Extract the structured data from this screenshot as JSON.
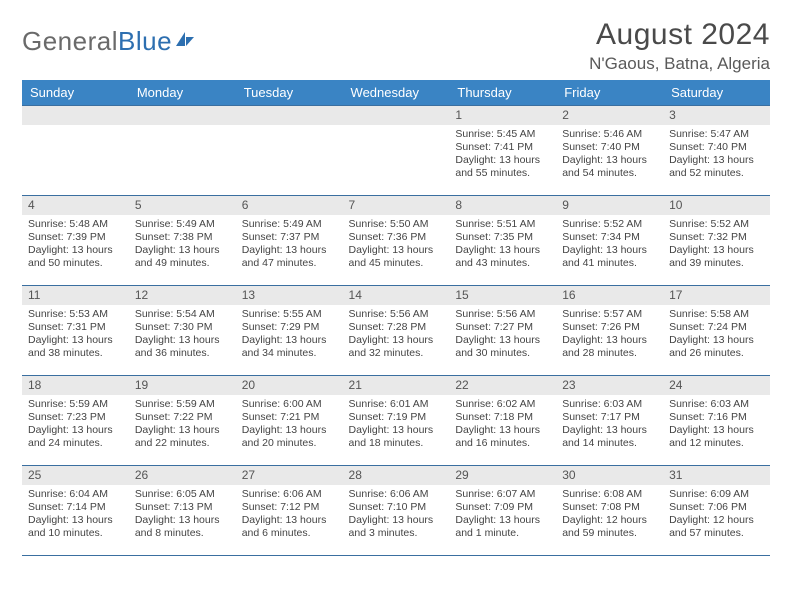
{
  "logo": {
    "text1": "General",
    "text2": "Blue"
  },
  "title": "August 2024",
  "location": "N'Gaous, Batna, Algeria",
  "colors": {
    "header_bg": "#3a84c4",
    "header_text": "#ffffff",
    "daybar_bg": "#e9e9e9",
    "border": "#3a6fa0",
    "logo_gray": "#6a6a6a",
    "logo_blue": "#2d6fb0"
  },
  "weekdays": [
    "Sunday",
    "Monday",
    "Tuesday",
    "Wednesday",
    "Thursday",
    "Friday",
    "Saturday"
  ],
  "weeks": [
    [
      null,
      null,
      null,
      null,
      {
        "n": "1",
        "sr": "5:45 AM",
        "ss": "7:41 PM",
        "dl": "Daylight: 13 hours and 55 minutes."
      },
      {
        "n": "2",
        "sr": "5:46 AM",
        "ss": "7:40 PM",
        "dl": "Daylight: 13 hours and 54 minutes."
      },
      {
        "n": "3",
        "sr": "5:47 AM",
        "ss": "7:40 PM",
        "dl": "Daylight: 13 hours and 52 minutes."
      }
    ],
    [
      {
        "n": "4",
        "sr": "5:48 AM",
        "ss": "7:39 PM",
        "dl": "Daylight: 13 hours and 50 minutes."
      },
      {
        "n": "5",
        "sr": "5:49 AM",
        "ss": "7:38 PM",
        "dl": "Daylight: 13 hours and 49 minutes."
      },
      {
        "n": "6",
        "sr": "5:49 AM",
        "ss": "7:37 PM",
        "dl": "Daylight: 13 hours and 47 minutes."
      },
      {
        "n": "7",
        "sr": "5:50 AM",
        "ss": "7:36 PM",
        "dl": "Daylight: 13 hours and 45 minutes."
      },
      {
        "n": "8",
        "sr": "5:51 AM",
        "ss": "7:35 PM",
        "dl": "Daylight: 13 hours and 43 minutes."
      },
      {
        "n": "9",
        "sr": "5:52 AM",
        "ss": "7:34 PM",
        "dl": "Daylight: 13 hours and 41 minutes."
      },
      {
        "n": "10",
        "sr": "5:52 AM",
        "ss": "7:32 PM",
        "dl": "Daylight: 13 hours and 39 minutes."
      }
    ],
    [
      {
        "n": "11",
        "sr": "5:53 AM",
        "ss": "7:31 PM",
        "dl": "Daylight: 13 hours and 38 minutes."
      },
      {
        "n": "12",
        "sr": "5:54 AM",
        "ss": "7:30 PM",
        "dl": "Daylight: 13 hours and 36 minutes."
      },
      {
        "n": "13",
        "sr": "5:55 AM",
        "ss": "7:29 PM",
        "dl": "Daylight: 13 hours and 34 minutes."
      },
      {
        "n": "14",
        "sr": "5:56 AM",
        "ss": "7:28 PM",
        "dl": "Daylight: 13 hours and 32 minutes."
      },
      {
        "n": "15",
        "sr": "5:56 AM",
        "ss": "7:27 PM",
        "dl": "Daylight: 13 hours and 30 minutes."
      },
      {
        "n": "16",
        "sr": "5:57 AM",
        "ss": "7:26 PM",
        "dl": "Daylight: 13 hours and 28 minutes."
      },
      {
        "n": "17",
        "sr": "5:58 AM",
        "ss": "7:24 PM",
        "dl": "Daylight: 13 hours and 26 minutes."
      }
    ],
    [
      {
        "n": "18",
        "sr": "5:59 AM",
        "ss": "7:23 PM",
        "dl": "Daylight: 13 hours and 24 minutes."
      },
      {
        "n": "19",
        "sr": "5:59 AM",
        "ss": "7:22 PM",
        "dl": "Daylight: 13 hours and 22 minutes."
      },
      {
        "n": "20",
        "sr": "6:00 AM",
        "ss": "7:21 PM",
        "dl": "Daylight: 13 hours and 20 minutes."
      },
      {
        "n": "21",
        "sr": "6:01 AM",
        "ss": "7:19 PM",
        "dl": "Daylight: 13 hours and 18 minutes."
      },
      {
        "n": "22",
        "sr": "6:02 AM",
        "ss": "7:18 PM",
        "dl": "Daylight: 13 hours and 16 minutes."
      },
      {
        "n": "23",
        "sr": "6:03 AM",
        "ss": "7:17 PM",
        "dl": "Daylight: 13 hours and 14 minutes."
      },
      {
        "n": "24",
        "sr": "6:03 AM",
        "ss": "7:16 PM",
        "dl": "Daylight: 13 hours and 12 minutes."
      }
    ],
    [
      {
        "n": "25",
        "sr": "6:04 AM",
        "ss": "7:14 PM",
        "dl": "Daylight: 13 hours and 10 minutes."
      },
      {
        "n": "26",
        "sr": "6:05 AM",
        "ss": "7:13 PM",
        "dl": "Daylight: 13 hours and 8 minutes."
      },
      {
        "n": "27",
        "sr": "6:06 AM",
        "ss": "7:12 PM",
        "dl": "Daylight: 13 hours and 6 minutes."
      },
      {
        "n": "28",
        "sr": "6:06 AM",
        "ss": "7:10 PM",
        "dl": "Daylight: 13 hours and 3 minutes."
      },
      {
        "n": "29",
        "sr": "6:07 AM",
        "ss": "7:09 PM",
        "dl": "Daylight: 13 hours and 1 minute."
      },
      {
        "n": "30",
        "sr": "6:08 AM",
        "ss": "7:08 PM",
        "dl": "Daylight: 12 hours and 59 minutes."
      },
      {
        "n": "31",
        "sr": "6:09 AM",
        "ss": "7:06 PM",
        "dl": "Daylight: 12 hours and 57 minutes."
      }
    ]
  ]
}
